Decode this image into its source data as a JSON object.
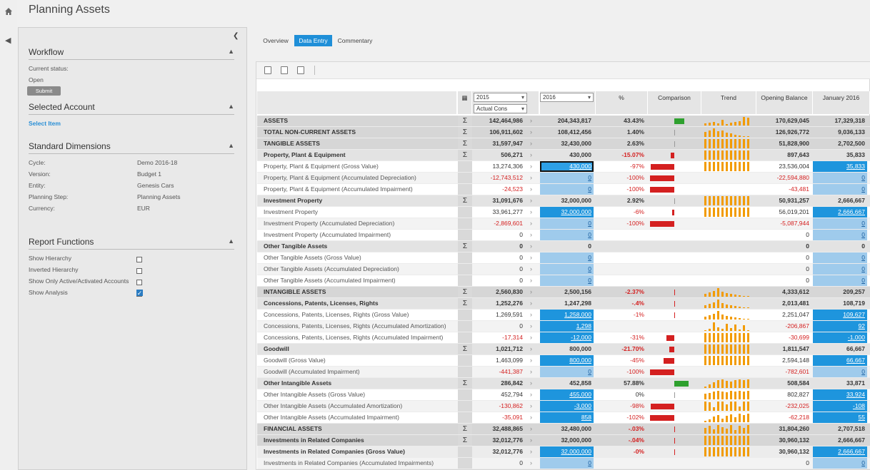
{
  "page": {
    "title": "Planning Assets"
  },
  "workflow": {
    "title": "Workflow",
    "status_label": "Current status:",
    "status_value": "Open",
    "submit_label": "Submit"
  },
  "selected_account": {
    "title": "Selected Account",
    "link": "Select Item"
  },
  "dimensions": {
    "title": "Standard Dimensions",
    "items": [
      {
        "label": "Cycle:",
        "value": "Demo 2016-18"
      },
      {
        "label": "Version:",
        "value": "Budget 1"
      },
      {
        "label": "Entity:",
        "value": "Genesis Cars"
      },
      {
        "label": "Planning Step:",
        "value": "Planning Assets"
      },
      {
        "label": "Currency:",
        "value": "EUR"
      }
    ]
  },
  "report_functions": {
    "title": "Report Functions",
    "items": [
      {
        "label": "Show Hierarchy",
        "checked": false
      },
      {
        "label": "Inverted Hierarchy",
        "checked": false
      },
      {
        "label": "Show Only Active/Activated Accounts",
        "checked": false
      },
      {
        "label": "Show Analysis",
        "checked": true
      }
    ]
  },
  "tabs": [
    {
      "label": "Overview"
    },
    {
      "label": "Data Entry",
      "active": true
    },
    {
      "label": "Commentary"
    }
  ],
  "grid": {
    "year1": "2015",
    "year1_sub": "Actual Cons",
    "year2": "2016",
    "headers": {
      "pct": "%",
      "comparison": "Comparison",
      "trend": "Trend",
      "opening": "Opening Balance",
      "jan": "January 2016"
    },
    "rows": [
      {
        "name": "ASSETS",
        "lvl": "L1",
        "sum": true,
        "v15": "142,464,986",
        "v16": "204,343,817",
        "pct": "43.43%",
        "ob": "170,629,045",
        "jan": "17,329,318",
        "cmp": 0.4,
        "cmpc": "g",
        "trend": [
          3,
          4,
          5,
          3,
          8,
          2,
          4,
          5,
          6,
          12,
          11
        ]
      },
      {
        "name": "TOTAL NON-CURRENT ASSETS",
        "lvl": "L1",
        "sum": true,
        "v15": "106,911,602",
        "v16": "108,412,456",
        "pct": "1.40%",
        "ob": "126,926,772",
        "jan": "9,036,133",
        "cmp": 0,
        "cmpc": "g",
        "trend": [
          7,
          9,
          12,
          8,
          9,
          6,
          5,
          3,
          2,
          1,
          1
        ]
      },
      {
        "name": "TANGIBLE ASSETS",
        "lvl": "L1",
        "sum": true,
        "v15": "31,597,947",
        "v16": "32,430,000",
        "pct": "2.63%",
        "ob": "51,828,900",
        "jan": "2,702,500",
        "cmp": 0,
        "cmpc": "g",
        "trend": [
          13,
          13,
          13,
          13,
          13,
          13,
          13,
          13,
          13,
          13,
          13
        ]
      },
      {
        "name": "Property, Plant & Equipment",
        "lvl": "L2",
        "sum": true,
        "v15": "506,271",
        "v16": "430,000",
        "pct": "-15.07%",
        "neg": true,
        "ob": "897,643",
        "jan": "35,833",
        "cmp": -0.15,
        "cmpc": "r",
        "trend": [
          13,
          13,
          13,
          13,
          13,
          13,
          13,
          13,
          13,
          13,
          13
        ]
      },
      {
        "name": "Property, Plant & Equipment (Gross Value)",
        "lvl": "L4",
        "v15": "13,274,306",
        "v16": "430,000",
        "v16s": "sel2",
        "pct": "-97%",
        "neg": true,
        "ob": "23,536,004",
        "jan": "35,833",
        "jans": "blue",
        "cmp": -0.97,
        "cmpc": "r",
        "trend": [
          13,
          13,
          13,
          13,
          13,
          13,
          13,
          13,
          13,
          13,
          13
        ]
      },
      {
        "name": "Property, Plant & Equipment (Accumulated Depreciation)",
        "lvl": "L4",
        "alt": true,
        "v15": "-12,743,512",
        "v15n": true,
        "v16": "0",
        "v16s": "inp",
        "pct": "-100%",
        "neg": true,
        "ob": "-22,594,880",
        "obn": true,
        "jan": "0",
        "jans": "inp",
        "cmp": -1,
        "cmpc": "r",
        "trend": []
      },
      {
        "name": "Property, Plant & Equipment (Accumulated Impairment)",
        "lvl": "L4",
        "v15": "-24,523",
        "v15n": true,
        "v16": "0",
        "v16s": "inp",
        "pct": "-100%",
        "neg": true,
        "ob": "-43,481",
        "obn": true,
        "jan": "0",
        "jans": "inp",
        "cmp": -1,
        "cmpc": "r",
        "trend": []
      },
      {
        "name": "Investment Property",
        "lvl": "L2",
        "sum": true,
        "v15": "31,091,676",
        "v16": "32,000,000",
        "pct": "2.92%",
        "ob": "50,931,257",
        "jan": "2,666,667",
        "cmp": 0,
        "cmpc": "g",
        "trend": [
          13,
          13,
          13,
          13,
          13,
          13,
          13,
          13,
          13,
          13,
          13
        ]
      },
      {
        "name": "Investment Property",
        "lvl": "L4",
        "v15": "33,961,277",
        "v16": "32,000,000",
        "v16s": "blue",
        "pct": "-6%",
        "neg": true,
        "ob": "56,019,201",
        "jan": "2,666,667",
        "jans": "blue",
        "cmp": -0.06,
        "cmpc": "r",
        "trend": [
          13,
          13,
          13,
          13,
          13,
          13,
          13,
          13,
          13,
          13,
          13
        ]
      },
      {
        "name": "Investment Property (Accumulated Depreciation)",
        "lvl": "L4",
        "alt": true,
        "v15": "-2,869,601",
        "v15n": true,
        "v16": "0",
        "v16s": "inp",
        "pct": "-100%",
        "neg": true,
        "ob": "-5,087,944",
        "obn": true,
        "jan": "0",
        "jans": "inp",
        "cmp": -1,
        "cmpc": "r",
        "trend": []
      },
      {
        "name": "Investment Property (Accumulated Impairment)",
        "lvl": "L4",
        "v15": "0",
        "v16": "0",
        "v16s": "inp",
        "pct": "",
        "ob": "0",
        "jan": "0",
        "jans": "inp",
        "trend": []
      },
      {
        "name": "Other Tangible Assets",
        "lvl": "L2",
        "sum": true,
        "v15": "0",
        "v16": "0",
        "pct": "",
        "ob": "0",
        "jan": "0",
        "trend": []
      },
      {
        "name": "Other Tangible Assets (Gross Value)",
        "lvl": "L4",
        "v15": "0",
        "v16": "0",
        "v16s": "inp",
        "pct": "",
        "ob": "0",
        "jan": "0",
        "jans": "inp",
        "trend": []
      },
      {
        "name": "Other Tangible Assets (Accumulated Depreciation)",
        "lvl": "L4",
        "alt": true,
        "v15": "0",
        "v16": "0",
        "v16s": "inp",
        "pct": "",
        "ob": "0",
        "jan": "0",
        "jans": "inp",
        "trend": []
      },
      {
        "name": "Other Tangible Assets (Accumulated Impairment)",
        "lvl": "L4",
        "v15": "0",
        "v16": "0",
        "v16s": "inp",
        "pct": "",
        "ob": "0",
        "jan": "0",
        "jans": "inp",
        "trend": []
      },
      {
        "name": "INTANGIBLE ASSETS",
        "lvl": "L1",
        "sum": true,
        "v15": "2,560,830",
        "v16": "2,500,156",
        "pct": "-2.37%",
        "neg": true,
        "ob": "4,333,612",
        "jan": "209,257",
        "cmp": -0.02,
        "cmpc": "r",
        "trend": [
          4,
          6,
          8,
          12,
          7,
          5,
          4,
          3,
          2,
          1,
          1
        ]
      },
      {
        "name": "Concessions, Patents, Licenses, Rights",
        "lvl": "L2",
        "sum": true,
        "v15": "1,252,276",
        "v16": "1,247,298",
        "pct": "-.4%",
        "neg": true,
        "ob": "2,013,481",
        "jan": "108,719",
        "cmp": -0.004,
        "cmpc": "r",
        "trend": [
          4,
          6,
          8,
          12,
          7,
          5,
          4,
          3,
          2,
          1,
          1
        ]
      },
      {
        "name": "Concessions, Patents, Licenses, Rights (Gross Value)",
        "lvl": "L4",
        "v15": "1,269,591",
        "v16": "1,258,000",
        "v16s": "blue",
        "pct": "-1%",
        "neg": true,
        "ob": "2,251,047",
        "jan": "109,627",
        "jans": "blue",
        "cmp": -0.01,
        "cmpc": "r",
        "trend": [
          4,
          6,
          8,
          12,
          7,
          5,
          4,
          3,
          2,
          1,
          1
        ]
      },
      {
        "name": "Concessions, Patents, Licenses, Rights (Accumulated Amortization)",
        "lvl": "L4",
        "alt": true,
        "v15": "0",
        "v16": "1,298",
        "v16s": "blue",
        "pct": "",
        "ob": "-206,867",
        "obn": true,
        "jan": "92",
        "jans": "blue",
        "trend": [
          1,
          3,
          12,
          5,
          3,
          10,
          4,
          9,
          2,
          8,
          1
        ]
      },
      {
        "name": "Concessions, Patents, Licenses, Rights (Accumulated Impairment)",
        "lvl": "L4",
        "v15": "-17,314",
        "v15n": true,
        "v16": "-12,000",
        "v16s": "blue",
        "v16n": true,
        "pct": "-31%",
        "neg": true,
        "ob": "-30,699",
        "obn": true,
        "jan": "-1,000",
        "jans": "blue",
        "cmp": -0.31,
        "cmpc": "r",
        "trend": [
          13,
          13,
          13,
          13,
          13,
          13,
          13,
          13,
          13,
          13,
          13
        ]
      },
      {
        "name": "Goodwill",
        "lvl": "L2",
        "sum": true,
        "v15": "1,021,712",
        "v16": "800,000",
        "pct": "-21.70%",
        "neg": true,
        "ob": "1,811,547",
        "jan": "66,667",
        "cmp": -0.22,
        "cmpc": "r",
        "trend": [
          13,
          13,
          13,
          13,
          13,
          13,
          13,
          13,
          13,
          13,
          13
        ]
      },
      {
        "name": "Goodwill (Gross Value)",
        "lvl": "L4",
        "v15": "1,463,099",
        "v16": "800,000",
        "v16s": "blue",
        "pct": "-45%",
        "neg": true,
        "ob": "2,594,148",
        "jan": "66,667",
        "jans": "blue",
        "cmp": -0.45,
        "cmpc": "r",
        "trend": [
          13,
          13,
          13,
          13,
          13,
          13,
          13,
          13,
          13,
          13,
          13
        ]
      },
      {
        "name": "Goodwill (Accumulated Impairment)",
        "lvl": "L4",
        "alt": true,
        "v15": "-441,387",
        "v15n": true,
        "v16": "0",
        "v16s": "inp",
        "pct": "-100%",
        "neg": true,
        "ob": "-782,601",
        "obn": true,
        "jan": "0",
        "jans": "inp",
        "cmp": -1,
        "cmpc": "r",
        "trend": []
      },
      {
        "name": "Other Intangible Assets",
        "lvl": "L2",
        "sum": true,
        "v15": "286,842",
        "v16": "452,858",
        "pct": "57.88%",
        "ob": "508,584",
        "jan": "33,871",
        "cmp": 0.58,
        "cmpc": "g",
        "trend": [
          2,
          5,
          8,
          11,
          12,
          10,
          9,
          11,
          12,
          11,
          12
        ]
      },
      {
        "name": "Other Intangible Assets (Gross Value)",
        "lvl": "L4",
        "v15": "452,794",
        "v16": "455,000",
        "v16s": "blue",
        "pct": "0%",
        "ob": "802,827",
        "jan": "33,924",
        "jans": "blue",
        "cmp": 0,
        "cmpc": "g",
        "trend": [
          8,
          9,
          11,
          12,
          11,
          10,
          12,
          11,
          12,
          11,
          12
        ]
      },
      {
        "name": "Other Intangible Assets (Accumulated Amortization)",
        "lvl": "L4",
        "alt": true,
        "v15": "-130,862",
        "v15n": true,
        "v16": "-3,000",
        "v16s": "blue",
        "v16n": true,
        "pct": "-98%",
        "neg": true,
        "ob": "-232,025",
        "obn": true,
        "jan": "-108",
        "jans": "blue",
        "cmp": -0.98,
        "cmpc": "r",
        "trend": [
          13,
          12,
          5,
          13,
          13,
          9,
          13,
          13,
          6,
          13,
          13
        ]
      },
      {
        "name": "Other Intangible Assets (Accumulated Impairment)",
        "lvl": "L4",
        "v15": "-35,091",
        "v15n": true,
        "v16": "858",
        "v16s": "blue",
        "pct": "-102%",
        "neg": true,
        "ob": "-62,218",
        "obn": true,
        "jan": "55",
        "jans": "blue",
        "cmp": -1,
        "cmpc": "r",
        "trend": [
          2,
          4,
          8,
          10,
          5,
          9,
          11,
          7,
          12,
          10,
          12
        ]
      },
      {
        "name": "FINANCIAL ASSETS",
        "lvl": "L1",
        "sum": true,
        "v15": "32,488,865",
        "v16": "32,480,000",
        "pct": "-.03%",
        "neg": true,
        "ob": "31,804,260",
        "jan": "2,707,518",
        "cmp": -0.003,
        "cmpc": "r",
        "trend": [
          8,
          11,
          6,
          12,
          9,
          7,
          12,
          5,
          11,
          8,
          12
        ]
      },
      {
        "name": "Investments in Related Companies",
        "lvl": "L1",
        "sum": true,
        "v15": "32,012,776",
        "v16": "32,000,000",
        "pct": "-.04%",
        "neg": true,
        "ob": "30,960,132",
        "jan": "2,666,667",
        "cmp": -0.004,
        "cmpc": "r",
        "trend": [
          13,
          13,
          13,
          13,
          13,
          13,
          13,
          13,
          13,
          13,
          13
        ]
      },
      {
        "name": "Investments in Related Companies (Gross Value)",
        "lvl": "L3",
        "v15": "32,012,776",
        "v16": "32,000,000",
        "v16s": "blue",
        "pct": "-0%",
        "neg": true,
        "ob": "30,960,132",
        "jan": "2,666,667",
        "jans": "blue",
        "cmp": -0.004,
        "cmpc": "r",
        "trend": [
          13,
          13,
          13,
          13,
          13,
          13,
          13,
          13,
          13,
          13,
          13
        ]
      },
      {
        "name": "Investments in Related Companies (Accumulated Impairments)",
        "lvl": "L4",
        "alt": true,
        "v15": "0",
        "v16": "0",
        "v16s": "inp",
        "pct": "",
        "ob": "0",
        "jan": "0",
        "jans": "inp",
        "trend": []
      }
    ]
  },
  "colors": {
    "accent": "#1f8fd8",
    "negative": "#d42020",
    "positive": "#2ea02e",
    "trend": "#f29b00"
  }
}
